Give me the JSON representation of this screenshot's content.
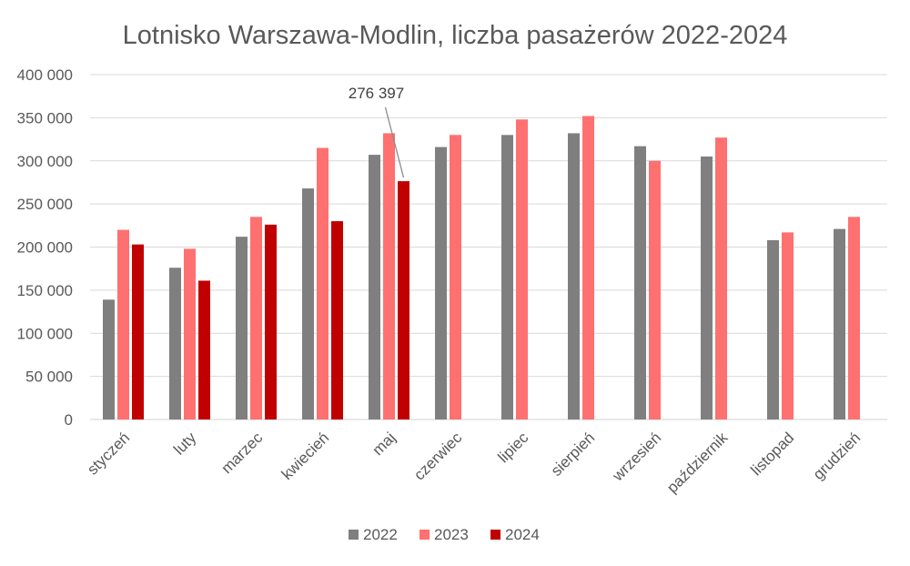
{
  "chart_data": {
    "type": "bar",
    "title": "Lotnisko Warszawa-Modlin, liczba pasażerów 2022-2024",
    "xlabel": "",
    "ylabel": "",
    "ylim": [
      0,
      400000
    ],
    "yticks": [
      0,
      50000,
      100000,
      150000,
      200000,
      250000,
      300000,
      350000,
      400000
    ],
    "ytick_labels": [
      "0",
      "50 000",
      "100 000",
      "150 000",
      "200 000",
      "250 000",
      "300 000",
      "350 000",
      "400 000"
    ],
    "grid": true,
    "legend_position": "bottom",
    "categories": [
      "styczeń",
      "luty",
      "marzec",
      "kwiecień",
      "maj",
      "czerwiec",
      "lipiec",
      "sierpień",
      "wrzesień",
      "październik",
      "listopad",
      "grudzień"
    ],
    "series": [
      {
        "name": "2022",
        "color": "#7f7f7f",
        "values": [
          139000,
          176000,
          212000,
          268000,
          307000,
          316000,
          330000,
          332000,
          317000,
          305000,
          208000,
          221000
        ]
      },
      {
        "name": "2023",
        "color": "#ff7070",
        "values": [
          220000,
          198000,
          235000,
          315000,
          332000,
          330000,
          348000,
          352000,
          300000,
          327000,
          217000,
          235000
        ]
      },
      {
        "name": "2024",
        "color": "#c00000",
        "values": [
          203000,
          161000,
          226000,
          230000,
          276397,
          null,
          null,
          null,
          null,
          null,
          null,
          null
        ]
      }
    ],
    "annotations": [
      {
        "text": "276 397",
        "category": "maj",
        "series": "2024",
        "value": 276397
      }
    ]
  }
}
